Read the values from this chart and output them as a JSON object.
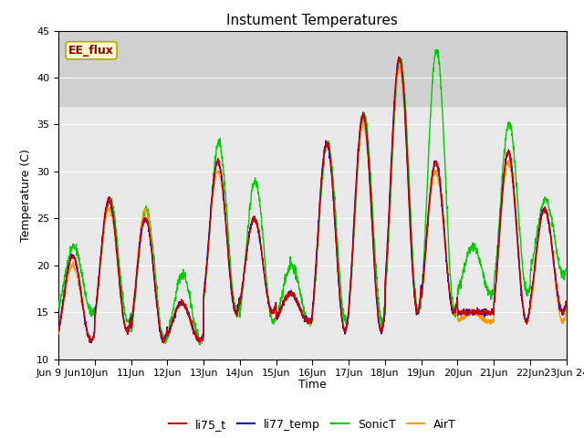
{
  "title": "Instument Temperatures",
  "xlabel": "Time",
  "ylabel": "Temperature (C)",
  "ylim": [
    10,
    45
  ],
  "background_color": "#ffffff",
  "plot_bg_color": "#e8e8e8",
  "band_color": "#d0d0d0",
  "band_ymin": 37,
  "band_ymax": 45,
  "annotation_text": "EE_flux",
  "annotation_color": "#8b0000",
  "annotation_bg": "#ffffcc",
  "annotation_border": "#aaaa00",
  "colors": {
    "li75_t": "#cc0000",
    "li77_temp": "#0000cc",
    "SonicT": "#00cc00",
    "AirT": "#ff9900"
  },
  "x_tick_labels": [
    "Jun 9 Jun",
    "10Jun",
    "11Jun",
    "12Jun",
    "13Jun",
    "14Jun",
    "15Jun",
    "16Jun",
    "17Jun",
    "18Jun",
    "19Jun",
    "20Jun",
    "21Jun",
    "22Jun",
    "23Jun 24"
  ],
  "x_tick_positions": [
    0,
    1,
    2,
    3,
    4,
    5,
    6,
    7,
    8,
    9,
    10,
    11,
    12,
    13,
    14
  ],
  "y_ticks": [
    10,
    15,
    20,
    25,
    30,
    35,
    40,
    45
  ],
  "title_fontsize": 11,
  "label_fontsize": 9,
  "tick_fontsize": 8
}
